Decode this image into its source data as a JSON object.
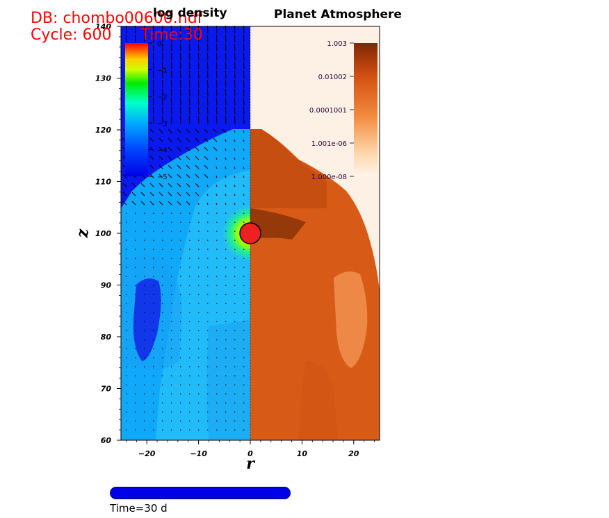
{
  "header": {
    "db_label": "DB: chombo00600.hdf",
    "cycle_label": "Cycle: 600",
    "time_label": "Time:30"
  },
  "panels": {
    "left_title": "log density",
    "right_title": "Planet Atmosphere"
  },
  "footer": {
    "time_text": "Time=30 d",
    "progress_fraction": 1.0
  },
  "colors": {
    "title_red": "#ff0000",
    "planet_fill": "#ee2020",
    "atmosphere_dark": "#7a2a00",
    "atmosphere_mid": "#d95b14",
    "atmosphere_light": "#fdf0e4",
    "time_bar": "#0000e8"
  },
  "chart_data": [
    {
      "type": "heatmap",
      "name": "log density",
      "title": "log density",
      "xlabel": "r",
      "ylabel": "z",
      "xlim": [
        -25,
        0
      ],
      "ylim": [
        60,
        140
      ],
      "x_ticks": [
        -20,
        -10,
        0
      ],
      "y_ticks": [
        60,
        70,
        80,
        90,
        100,
        110,
        120,
        130,
        140
      ],
      "colorbar": {
        "ticks": [
          0,
          -1,
          -2,
          -3,
          -4,
          -5
        ],
        "range": [
          -5,
          0
        ],
        "colormap": "rainbow"
      },
      "overlay": "velocity vectors",
      "planet": {
        "r": 0,
        "z": 100,
        "radius": 2
      }
    },
    {
      "type": "heatmap",
      "name": "Planet Atmosphere",
      "title": "Planet Atmosphere",
      "xlabel": "r",
      "ylabel": "z",
      "xlim": [
        0,
        25
      ],
      "ylim": [
        60,
        140
      ],
      "x_ticks": [
        10,
        20
      ],
      "colorbar": {
        "ticks": [
          "1.003",
          "0.01002",
          "0.0001001",
          "1.001e-06",
          "1.000e-08"
        ],
        "scale": "log",
        "colormap": "oranges"
      }
    }
  ]
}
